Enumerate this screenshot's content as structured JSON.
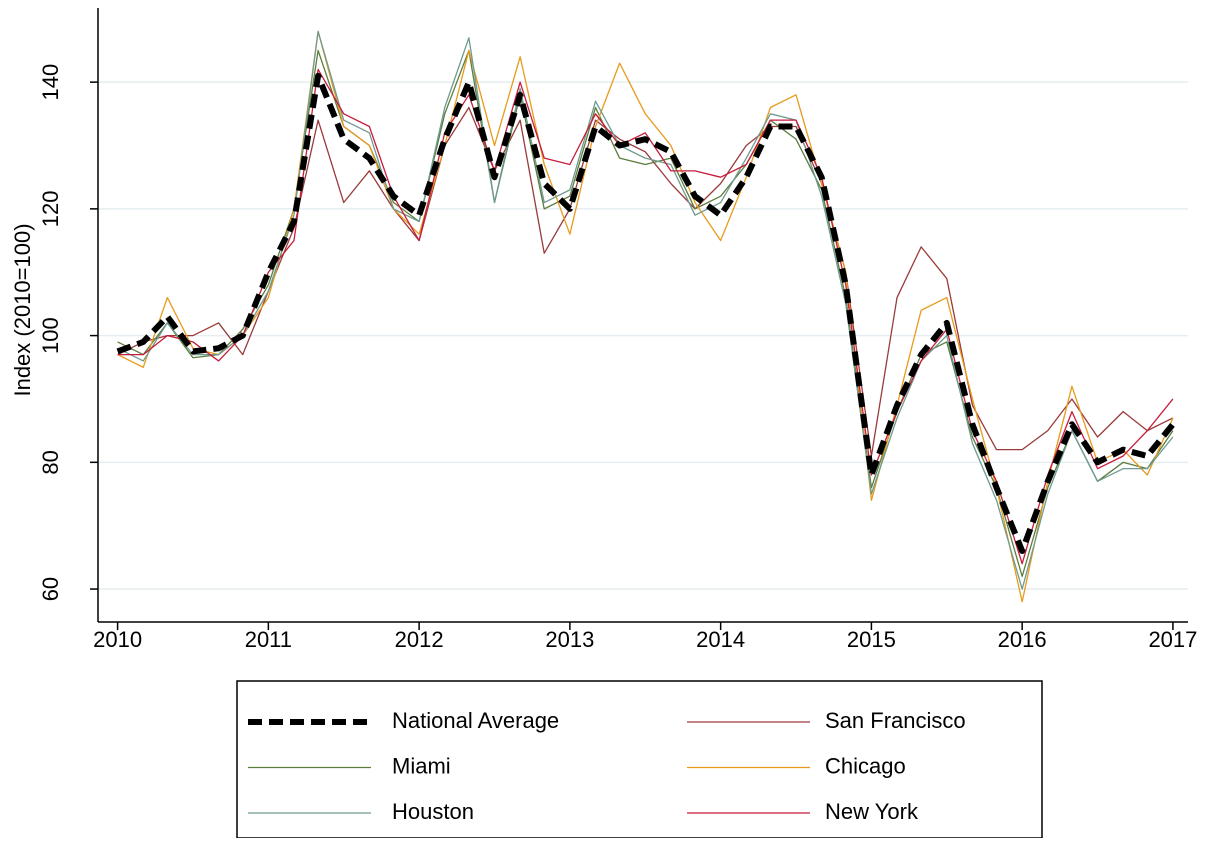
{
  "chart_data": {
    "type": "line",
    "y_label": "Index (2010=100)",
    "x": [
      2010,
      2010.17,
      2010.33,
      2010.5,
      2010.67,
      2010.83,
      2011,
      2011.17,
      2011.33,
      2011.5,
      2011.67,
      2011.83,
      2012,
      2012.17,
      2012.33,
      2012.5,
      2012.67,
      2012.83,
      2013,
      2013.17,
      2013.33,
      2013.5,
      2013.67,
      2013.83,
      2014,
      2014.17,
      2014.33,
      2014.5,
      2014.67,
      2014.83,
      2015,
      2015.17,
      2015.33,
      2015.5,
      2015.67,
      2015.83,
      2016,
      2016.17,
      2016.33,
      2016.5,
      2016.67,
      2016.83,
      2017
    ],
    "series": [
      {
        "name": "National Average",
        "color": "#000000",
        "style": "dashed",
        "values": [
          97.5,
          99,
          103,
          97.5,
          98,
          100,
          110,
          118,
          141,
          131,
          128,
          122,
          119,
          131,
          140,
          125,
          138,
          124,
          120,
          133,
          130,
          131,
          129,
          122,
          119,
          125,
          133,
          133,
          125,
          108,
          78,
          89,
          97,
          102,
          86,
          76,
          66,
          77,
          86,
          80,
          82,
          81,
          86
        ]
      },
      {
        "name": "San Francisco",
        "color": "#9a3b3b",
        "values": [
          97,
          99,
          100,
          100,
          102,
          97,
          107,
          117,
          134,
          121,
          126,
          120,
          115,
          130,
          136,
          126,
          134,
          113,
          120,
          134,
          131,
          129,
          124,
          120,
          124,
          130,
          133,
          133,
          124,
          110,
          81,
          106,
          114,
          109,
          89,
          82,
          82,
          85,
          90,
          84,
          88,
          85,
          87
        ]
      },
      {
        "name": "Miami",
        "color": "#5b7d3c",
        "values": [
          99,
          97,
          102,
          96.5,
          97,
          101,
          108,
          120,
          145,
          133,
          130,
          121,
          118,
          135,
          145,
          121,
          138,
          120,
          122,
          136,
          128,
          127,
          128,
          120,
          122,
          127,
          134,
          131,
          123,
          106,
          76,
          88,
          97,
          99,
          84,
          76,
          62,
          76,
          85,
          77,
          80,
          79,
          85
        ]
      },
      {
        "name": "Chicago",
        "color": "#e89a1c",
        "values": [
          97,
          95,
          106,
          98,
          97,
          100,
          106,
          120,
          148,
          133,
          130,
          120,
          116,
          130,
          145,
          130,
          144,
          127,
          116,
          133,
          143,
          135,
          130,
          121,
          115,
          125,
          136,
          138,
          124,
          110,
          74,
          89,
          104,
          106,
          90,
          76,
          58,
          77,
          92,
          80,
          82,
          78,
          87
        ]
      },
      {
        "name": "Houston",
        "color": "#6f9a90",
        "values": [
          98,
          96,
          102,
          97,
          97,
          100,
          107,
          119,
          148,
          134,
          132,
          120,
          118,
          136,
          147,
          121,
          139,
          121,
          123,
          137,
          130,
          128,
          127,
          119,
          121,
          128,
          135,
          134,
          122,
          105,
          75,
          87,
          96,
          100,
          83,
          74,
          60,
          75,
          85,
          77,
          79,
          79,
          84
        ]
      },
      {
        "name": "New York",
        "color": "#c81c3c",
        "values": [
          97,
          97,
          100,
          99,
          96,
          100,
          110,
          115,
          142,
          135,
          133,
          122,
          115,
          132,
          138,
          126,
          140,
          128,
          127,
          135,
          130,
          132,
          126,
          126,
          125,
          127,
          134,
          134,
          125,
          108,
          78,
          88,
          96,
          101,
          85,
          77,
          64,
          78,
          88,
          79,
          81,
          85,
          90
        ]
      }
    ],
    "xlim": [
      2009.87,
      2017.1
    ],
    "ylim": [
      54.8,
      151.7
    ],
    "xticks": [
      2010,
      2011,
      2012,
      2013,
      2014,
      2015,
      2016,
      2017
    ],
    "yticks": [
      60,
      80,
      100,
      120,
      140
    ],
    "grid": true,
    "legend": "bottom"
  }
}
